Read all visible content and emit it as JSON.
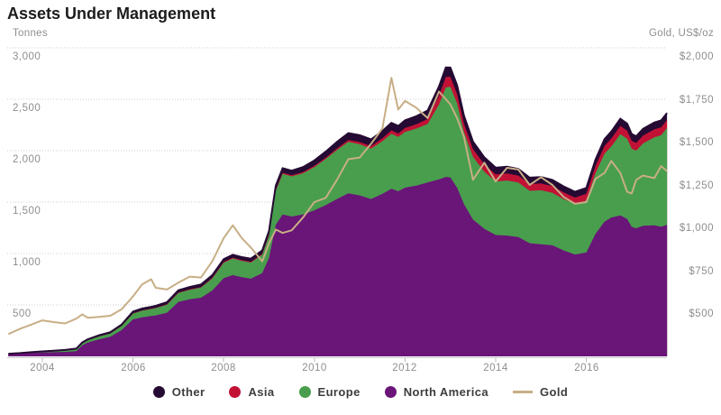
{
  "header": {
    "title": "Assets Under Management",
    "left_axis_title": "Tonnes",
    "right_axis_title": "Gold, US$/oz"
  },
  "colors": {
    "other": "#250a33",
    "asia": "#c11236",
    "europe": "#489e4d",
    "north_america": "#6a1578",
    "gold_line": "#c8ae86",
    "gridline": "#cccccc",
    "axis_line": "#cccccc",
    "tick_text": "#8e8e8e"
  },
  "legend": [
    {
      "label": "Other",
      "swatch": "circle",
      "color": "#250a33"
    },
    {
      "label": "Asia",
      "swatch": "circle",
      "color": "#c11236"
    },
    {
      "label": "Europe",
      "swatch": "circle",
      "color": "#489e4d"
    },
    {
      "label": "North America",
      "swatch": "circle",
      "color": "#6a1578"
    },
    {
      "label": "Gold",
      "swatch": "line",
      "color": "#c8ae86"
    }
  ],
  "chart_data": {
    "type": "area",
    "subtype": "stacked-area-with-line",
    "title": "Assets Under Management",
    "left_axis": {
      "label": "Tonnes",
      "min": 0,
      "max": 3000,
      "ticks": [
        3000,
        2500,
        2000,
        1500,
        1000,
        500
      ],
      "tick_labels": [
        "3,000",
        "2,500",
        "2,000",
        "1,500",
        "1,000",
        "500"
      ],
      "grid": "dotted"
    },
    "right_axis": {
      "label": "Gold, US$/oz",
      "min": 200,
      "max": 2000,
      "ticks": [
        2000,
        1750,
        1500,
        1250,
        1000,
        750,
        500
      ],
      "tick_labels": [
        "$2,000",
        "$1,750",
        "$1,500",
        "$1,250",
        "$1,000",
        "$750",
        "$500"
      ]
    },
    "x_axis": {
      "min": 2003.1,
      "max": 2017.85,
      "ticks": [
        2004,
        2006,
        2008,
        2010,
        2012,
        2014,
        2016
      ],
      "tick_labels": [
        "2004",
        "2006",
        "2008",
        "2010",
        "2012",
        "2014",
        "2016"
      ]
    },
    "x": [
      2003.25,
      2003.5,
      2003.75,
      2004.0,
      2004.25,
      2004.5,
      2004.75,
      2004.88,
      2005.0,
      2005.25,
      2005.5,
      2005.75,
      2006.0,
      2006.2,
      2006.4,
      2006.5,
      2006.75,
      2007.0,
      2007.25,
      2007.5,
      2007.75,
      2008.0,
      2008.2,
      2008.4,
      2008.6,
      2008.85,
      2009.0,
      2009.15,
      2009.3,
      2009.5,
      2009.75,
      2010.0,
      2010.25,
      2010.5,
      2010.75,
      2011.0,
      2011.25,
      2011.5,
      2011.7,
      2011.85,
      2012.0,
      2012.25,
      2012.5,
      2012.75,
      2012.9,
      2013.0,
      2013.15,
      2013.3,
      2013.5,
      2013.75,
      2014.0,
      2014.25,
      2014.5,
      2014.75,
      2015.0,
      2015.25,
      2015.5,
      2015.75,
      2016.0,
      2016.2,
      2016.4,
      2016.55,
      2016.75,
      2016.9,
      2017.0,
      2017.1,
      2017.25,
      2017.5,
      2017.65,
      2017.78
    ],
    "series": [
      {
        "name": "North America",
        "type": "area",
        "stack": 1,
        "axis": "left",
        "color": "#6a1578",
        "values": [
          24,
          29,
          34,
          38,
          40,
          43,
          50,
          108,
          133,
          166,
          190,
          255,
          360,
          380,
          392,
          398,
          425,
          530,
          555,
          570,
          640,
          760,
          790,
          770,
          755,
          810,
          960,
          1280,
          1380,
          1360,
          1380,
          1420,
          1470,
          1530,
          1585,
          1565,
          1530,
          1580,
          1630,
          1605,
          1640,
          1660,
          1690,
          1720,
          1745,
          1740,
          1640,
          1480,
          1330,
          1240,
          1180,
          1175,
          1160,
          1100,
          1090,
          1080,
          1030,
          990,
          1010,
          1190,
          1310,
          1350,
          1370,
          1335,
          1260,
          1245,
          1270,
          1275,
          1260,
          1280
        ]
      },
      {
        "name": "Europe",
        "type": "area",
        "stack": 2,
        "axis": "left",
        "color": "#489e4d",
        "values": [
          0,
          1,
          3,
          6,
          10,
          13,
          18,
          19,
          22,
          27,
          32,
          40,
          56,
          64,
          68,
          71,
          78,
          86,
          92,
          98,
          118,
          150,
          162,
          158,
          157,
          180,
          215,
          330,
          395,
          390,
          400,
          420,
          448,
          476,
          500,
          497,
          490,
          512,
          535,
          528,
          542,
          555,
          570,
          730,
          870,
          880,
          820,
          700,
          610,
          555,
          520,
          535,
          530,
          510,
          525,
          510,
          500,
          490,
          505,
          590,
          660,
          690,
          790,
          780,
          760,
          755,
          800,
          855,
          890,
          940
        ]
      },
      {
        "name": "Asia",
        "type": "area",
        "stack": 3,
        "axis": "left",
        "color": "#c11236",
        "values": [
          0,
          0,
          0,
          0,
          0,
          0,
          0,
          0,
          0,
          1,
          1,
          2,
          3,
          3,
          4,
          4,
          4,
          5,
          6,
          6,
          7,
          8,
          8,
          8,
          8,
          8,
          9,
          10,
          11,
          11,
          12,
          13,
          14,
          16,
          19,
          21,
          24,
          28,
          32,
          34,
          38,
          42,
          48,
          85,
          102,
          98,
          90,
          82,
          76,
          72,
          70,
          69,
          68,
          66,
          66,
          66,
          65,
          64,
          66,
          70,
          75,
          78,
          80,
          79,
          76,
          75,
          76,
          77,
          77,
          78
        ]
      },
      {
        "name": "Other",
        "type": "area",
        "stack": 4,
        "axis": "left",
        "color": "#250a33",
        "values": [
          1,
          2,
          3,
          4,
          5,
          6,
          7,
          8,
          10,
          11,
          12,
          13,
          16,
          18,
          18,
          18,
          20,
          21,
          22,
          24,
          25,
          27,
          28,
          29,
          30,
          32,
          36,
          40,
          44,
          44,
          48,
          52,
          58,
          63,
          66,
          67,
          66,
          70,
          73,
          73,
          75,
          78,
          82,
          90,
          92,
          90,
          85,
          78,
          72,
          68,
          64,
          65,
          64,
          62,
          62,
          60,
          58,
          56,
          57,
          62,
          66,
          68,
          70,
          69,
          66,
          65,
          66,
          67,
          67,
          68
        ]
      },
      {
        "name": "Gold",
        "type": "line",
        "axis": "right",
        "color": "#c8ae86",
        "values": [
          330,
          360,
          385,
          410,
          400,
          392,
          420,
          445,
          425,
          430,
          437,
          475,
          550,
          620,
          650,
          600,
          590,
          630,
          665,
          660,
          755,
          890,
          965,
          890,
          835,
          755,
          860,
          940,
          920,
          935,
          1010,
          1100,
          1125,
          1230,
          1350,
          1360,
          1440,
          1530,
          1825,
          1640,
          1690,
          1650,
          1590,
          1745,
          1700,
          1670,
          1590,
          1480,
          1230,
          1330,
          1220,
          1300,
          1290,
          1200,
          1245,
          1200,
          1130,
          1090,
          1100,
          1235,
          1270,
          1340,
          1270,
          1160,
          1150,
          1230,
          1255,
          1240,
          1310,
          1280
        ]
      }
    ],
    "legend_position": "bottom-center"
  }
}
